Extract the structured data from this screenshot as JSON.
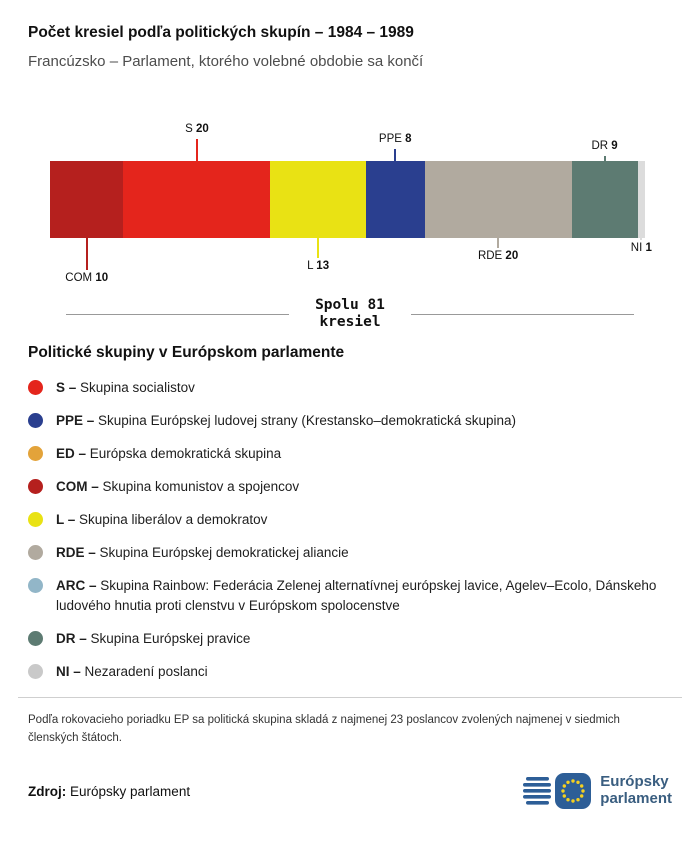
{
  "page": {
    "title": "Počet kresiel podľa politických skupín – 1984 – 1989",
    "subtitle": "Francúzsko – Parlament, ktorého volebné obdobie sa končí"
  },
  "chart_data": {
    "type": "bar",
    "variant": "horizontal-stacked",
    "total": 81,
    "total_label_line1": "Spolu 81",
    "total_label_line2": "kresiel",
    "segments": [
      {
        "abbr": "COM",
        "value": 10,
        "color": "#b5201e",
        "label_side": "below",
        "leader": 32
      },
      {
        "abbr": "S",
        "value": 20,
        "color": "#e4251c",
        "label_side": "above",
        "leader": 22
      },
      {
        "abbr": "L",
        "value": 13,
        "color": "#e9e214",
        "label_side": "below",
        "leader": 20
      },
      {
        "abbr": "PPE",
        "value": 8,
        "color": "#2a3f8f",
        "label_side": "above",
        "leader": 12
      },
      {
        "abbr": "RDE",
        "value": 20,
        "color": "#b1aa9f",
        "label_side": "below",
        "leader": 10
      },
      {
        "abbr": "DR",
        "value": 9,
        "color": "#5d7b72",
        "label_side": "above",
        "leader": 5
      },
      {
        "abbr": "NI",
        "value": 1,
        "color": "#dcdcdc",
        "label_side": "below",
        "leader": 2
      }
    ]
  },
  "legend": {
    "title": "Politické skupiny v Európskom parlamente",
    "items": [
      {
        "abbr": "S –",
        "text": "Skupina socialistov",
        "color": "#e4251c"
      },
      {
        "abbr": "PPE –",
        "text": "Skupina Európskej ludovej strany (Krestansko–demokratická skupina)",
        "color": "#2a3f8f"
      },
      {
        "abbr": "ED –",
        "text": "Európska demokratická skupina",
        "color": "#e3a33a"
      },
      {
        "abbr": "COM –",
        "text": "Skupina komunistov a spojencov",
        "color": "#b5201e"
      },
      {
        "abbr": "L –",
        "text": "Skupina liberálov a demokratov",
        "color": "#e9e214"
      },
      {
        "abbr": "RDE –",
        "text": "Skupina Európskej demokratickej aliancie",
        "color": "#b1aa9f"
      },
      {
        "abbr": "ARC –",
        "text": "Skupina Rainbow: Federácia Zelenej alternatívnej európskej lavice, Agelev–Ecolo, Dánskeho ludového hnutia proti clenstvu v Európskom spolocenstve",
        "color": "#92b6c8"
      },
      {
        "abbr": "DR –",
        "text": "Skupina Európskej pravice",
        "color": "#5d7b72"
      },
      {
        "abbr": "NI –",
        "text": "Nezaradení poslanci",
        "color": "#c9c9c9"
      }
    ]
  },
  "footer": {
    "note": "Podľa rokovacieho poriadku EP sa politická skupina skladá z najmenej 23 poslancov zvolených najmenej v siedmich členských štátoch.",
    "source_label": "Zdroj:",
    "source_value": "Európsky parlament",
    "logo_line1": "Európsky",
    "logo_line2": "parlament"
  }
}
